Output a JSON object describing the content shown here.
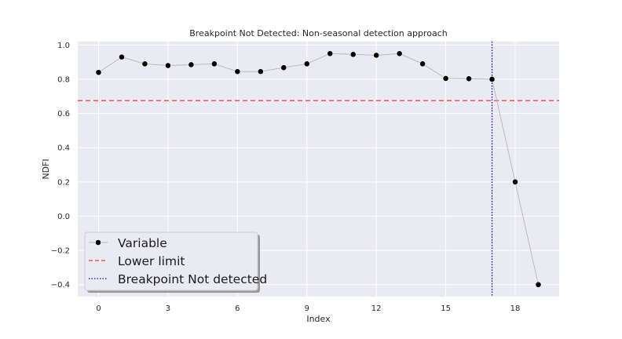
{
  "chart_data": {
    "type": "line",
    "title": "Breakpoint Not Detected: Non-seasonal detection approach",
    "xlabel": "Index",
    "ylabel": "NDFI",
    "xlim": [
      -0.9,
      19.9
    ],
    "ylim": [
      -0.47,
      1.02
    ],
    "xticks": [
      0,
      3,
      6,
      9,
      12,
      15,
      18
    ],
    "yticks": [
      -0.4,
      -0.2,
      0.0,
      0.2,
      0.4,
      0.6,
      0.8,
      1.0
    ],
    "ytick_labels": [
      "−0.4",
      "−0.2",
      "0.0",
      "0.2",
      "0.4",
      "0.6",
      "0.8",
      "1.0"
    ],
    "grid": true,
    "legend_position": "lower-left",
    "series": [
      {
        "name": "Variable",
        "x": [
          0,
          1,
          2,
          3,
          4,
          5,
          6,
          7,
          8,
          9,
          10,
          11,
          12,
          13,
          14,
          15,
          16,
          17,
          18,
          19
        ],
        "values": [
          0.84,
          0.93,
          0.89,
          0.88,
          0.885,
          0.89,
          0.845,
          0.845,
          0.868,
          0.89,
          0.95,
          0.945,
          0.94,
          0.95,
          0.89,
          0.805,
          0.803,
          0.8,
          0.2,
          -0.4
        ],
        "line_color": "#bbbbbb",
        "marker_color": "#000000"
      }
    ],
    "lower_limit": {
      "name": "Lower limit",
      "value": 0.675,
      "color": "#ff3333"
    },
    "breakpoint": {
      "name": "Breakpoint Not detected",
      "x": 17,
      "color": "#0000cc"
    }
  }
}
